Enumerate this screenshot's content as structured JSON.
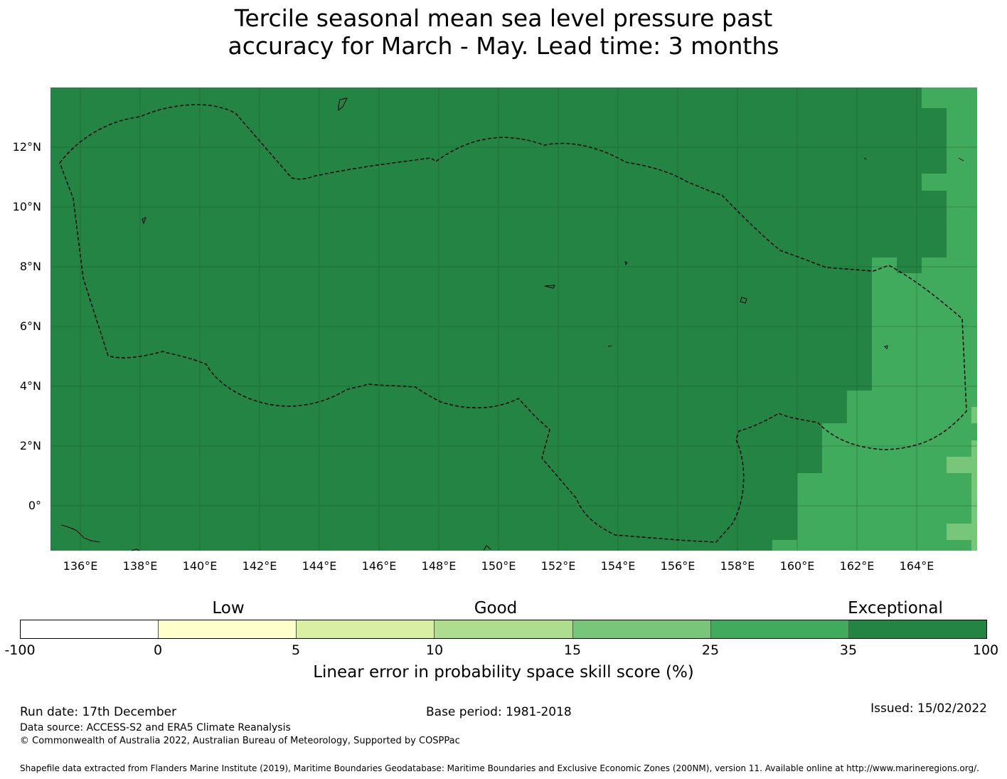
{
  "title": {
    "line1": "Tercile seasonal mean sea level pressure past",
    "line2": "accuracy for March - May. Lead time: 3 months"
  },
  "map": {
    "lat_labels": [
      "12°N",
      "10°N",
      "8°N",
      "6°N",
      "4°N",
      "2°N",
      "0°"
    ],
    "lon_labels": [
      "136°E",
      "138°E",
      "140°E",
      "142°E",
      "144°E",
      "146°E",
      "148°E",
      "150°E",
      "152°E",
      "154°E",
      "156°E",
      "158°E",
      "160°E",
      "162°E",
      "164°E"
    ],
    "lon_range": [
      135,
      166
    ],
    "lat_range": [
      -1.5,
      14
    ],
    "colors": {
      "exceptional": "#238443",
      "very_good": "#41ab5d",
      "good_high": "#78c679",
      "boundary": "#000000",
      "gridline": "#1a5e30"
    }
  },
  "legend": {
    "categories": [
      "Low",
      "Good",
      "Exceptional"
    ],
    "ticks": [
      "-100",
      "0",
      "5",
      "10",
      "15",
      "25",
      "35",
      "100"
    ],
    "colors": [
      "#ffffff",
      "#ffffcc",
      "#d9f0a3",
      "#addd8e",
      "#78c679",
      "#41ab5d",
      "#238443"
    ],
    "axis_label": "Linear error in probability space skill score (%)"
  },
  "footer": {
    "run_date": "Run date: 17th December",
    "base_period": "Base period: 1981-2018",
    "issued": "Issued: 15/02/2022",
    "data_source": "Data source: ACCESS-S2 and ERA5 Climate Reanalysis",
    "copyright": "© Commonwealth of Australia 2022, Australian Bureau of Meteorology, Supported by COSPPac",
    "shapefile": "Shapefile data extracted from Flanders Marine Institute (2019), Maritime Boundaries Geodatabase: Maritime Boundaries and Exclusive Economic Zones (200NM), version 11. Available online at http://www.marineregions.org/."
  }
}
